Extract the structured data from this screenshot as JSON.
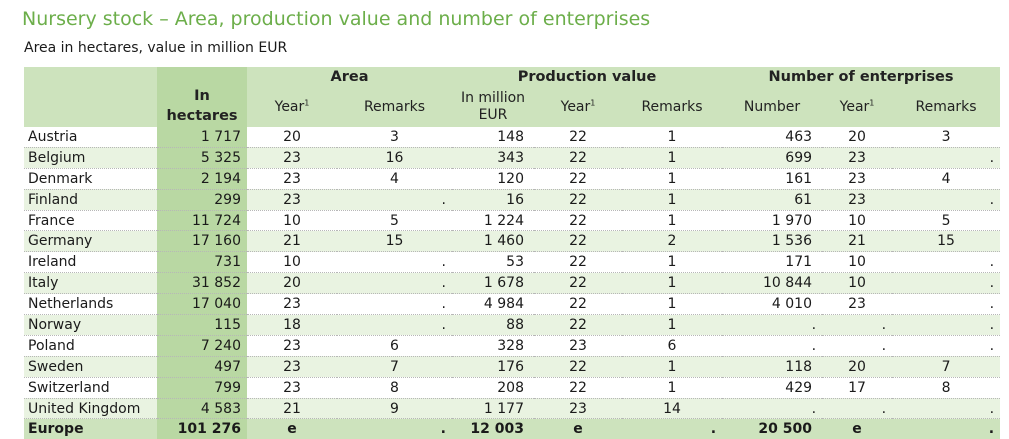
{
  "title": "Nursery stock – Area, production value and number of enterprises",
  "subtitle": "Area in hectares, value in million EUR",
  "colors": {
    "title": "#6cae4a",
    "header": "#cde3bd",
    "hectares_col": "#b9d8a3",
    "stripe": "#e9f3e1"
  },
  "headers": {
    "area": "Area",
    "production_value": "Production value",
    "enterprises": "Number of enterprises",
    "in_hectares_line1": "In",
    "in_hectares_line2": "hectares",
    "year": "Year",
    "year_footnote": "1",
    "remarks": "Remarks",
    "in_million_line1": "In million",
    "in_million_line2": "EUR",
    "number": "Number"
  },
  "rows": [
    {
      "country": "Austria",
      "ha": "1 717",
      "area_year": "20",
      "area_rem": "3",
      "pv": "148",
      "pv_year": "22",
      "pv_rem": "1",
      "num": "463",
      "num_year": "20",
      "num_rem": "3"
    },
    {
      "country": "Belgium",
      "ha": "5 325",
      "area_year": "23",
      "area_rem": "16",
      "pv": "343",
      "pv_year": "22",
      "pv_rem": "1",
      "num": "699",
      "num_year": "23",
      "num_rem": "",
      "num_rem_dot": "."
    },
    {
      "country": "Denmark",
      "ha": "2 194",
      "area_year": "23",
      "area_rem": "4",
      "pv": "120",
      "pv_year": "22",
      "pv_rem": "1",
      "num": "161",
      "num_year": "23",
      "num_rem": "4"
    },
    {
      "country": "Finland",
      "ha": "299",
      "area_year": "23",
      "area_rem": "",
      "area_rem_dot": ".",
      "pv": "16",
      "pv_year": "22",
      "pv_rem": "1",
      "num": "61",
      "num_year": "23",
      "num_rem": "",
      "num_rem_dot": "."
    },
    {
      "country": "France",
      "ha": "11 724",
      "area_year": "10",
      "area_rem": "5",
      "pv": "1 224",
      "pv_year": "22",
      "pv_rem": "1",
      "num": "1 970",
      "num_year": "10",
      "num_rem": "5"
    },
    {
      "country": "Germany",
      "ha": "17 160",
      "area_year": "21",
      "area_rem": "15",
      "pv": "1 460",
      "pv_year": "22",
      "pv_rem": "2",
      "num": "1 536",
      "num_year": "21",
      "num_rem": "15"
    },
    {
      "country": "Ireland",
      "ha": "731",
      "area_year": "10",
      "area_rem": "",
      "area_rem_dot": ".",
      "pv": "53",
      "pv_year": "22",
      "pv_rem": "1",
      "num": "171",
      "num_year": "10",
      "num_rem": "",
      "num_rem_dot": "."
    },
    {
      "country": "Italy",
      "ha": "31 852",
      "area_year": "20",
      "area_rem": "",
      "area_rem_dot": ".",
      "pv": "1 678",
      "pv_year": "22",
      "pv_rem": "1",
      "num": "10 844",
      "num_year": "10",
      "num_rem": "",
      "num_rem_dot": "."
    },
    {
      "country": "Netherlands",
      "ha": "17 040",
      "area_year": "23",
      "area_rem": "",
      "area_rem_dot": ".",
      "pv": "4 984",
      "pv_year": "22",
      "pv_rem": "1",
      "num": "4 010",
      "num_year": "23",
      "num_rem": "",
      "num_rem_dot": "."
    },
    {
      "country": "Norway",
      "ha": "115",
      "area_year": "18",
      "area_rem": "",
      "area_rem_dot": ".",
      "pv": "88",
      "pv_year": "22",
      "pv_rem": "1",
      "num": "",
      "num_dot": ".",
      "num_year": "",
      "num_year_dot": ".",
      "num_rem": "",
      "num_rem_dot": "."
    },
    {
      "country": "Poland",
      "ha": "7 240",
      "area_year": "23",
      "area_rem": "6",
      "pv": "328",
      "pv_year": "23",
      "pv_rem": "6",
      "num": "",
      "num_dot": ".",
      "num_year": "",
      "num_year_dot": ".",
      "num_rem": "",
      "num_rem_dot": "."
    },
    {
      "country": "Sweden",
      "ha": "497",
      "area_year": "23",
      "area_rem": "7",
      "pv": "176",
      "pv_year": "22",
      "pv_rem": "1",
      "num": "118",
      "num_year": "20",
      "num_rem": "7"
    },
    {
      "country": "Switzerland",
      "ha": "799",
      "area_year": "23",
      "area_rem": "8",
      "pv": "208",
      "pv_year": "22",
      "pv_rem": "1",
      "num": "429",
      "num_year": "17",
      "num_rem": "8"
    },
    {
      "country": "United Kingdom",
      "ha": "4 583",
      "area_year": "21",
      "area_rem": "9",
      "pv": "1 177",
      "pv_year": "23",
      "pv_rem": "14",
      "num": "",
      "num_dot": ".",
      "num_year": "",
      "num_year_dot": ".",
      "num_rem": "",
      "num_rem_dot": "."
    }
  ],
  "total": {
    "country": "Europe",
    "ha": "101 276",
    "area_year": "e",
    "area_rem": "",
    "area_rem_dot": ".",
    "pv": "12 003",
    "pv_year": "e",
    "pv_rem": "",
    "pv_rem_dot": ".",
    "num": "20 500",
    "num_year": "e",
    "num_rem": "",
    "num_rem_dot": "."
  }
}
